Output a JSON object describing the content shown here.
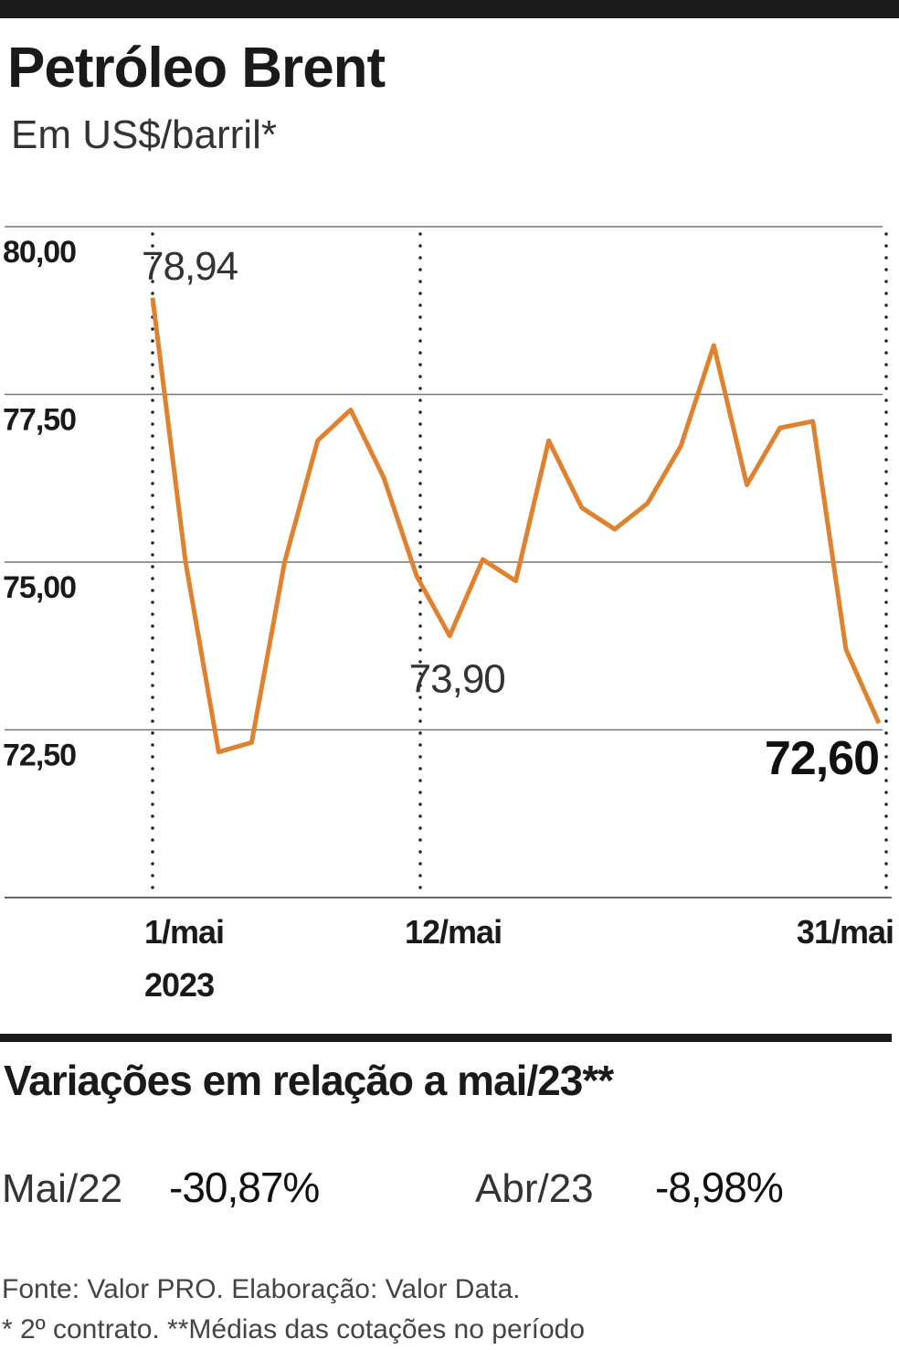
{
  "chart_data": {
    "type": "line",
    "title": "Petróleo Brent",
    "subtitle": "Em US$/barril*",
    "categories": [
      "1/mai",
      null,
      null,
      null,
      null,
      null,
      null,
      null,
      "12/mai",
      null,
      null,
      null,
      null,
      null,
      null,
      null,
      null,
      null,
      null,
      null,
      null,
      null,
      "31/mai"
    ],
    "year_label": "2023",
    "series": [
      {
        "color": "#e0812f",
        "values": [
          78.94,
          75.0,
          72.17,
          72.31,
          75.0,
          76.81,
          77.27,
          76.26,
          74.79,
          73.9,
          75.04,
          74.72,
          76.81,
          75.81,
          75.49,
          75.88,
          76.73,
          78.23,
          76.15,
          77.0,
          77.1,
          73.7,
          72.6
        ],
        "value_labels": [
          "78,94",
          null,
          null,
          null,
          null,
          null,
          null,
          null,
          null,
          "73,90",
          null,
          null,
          null,
          null,
          null,
          null,
          null,
          null,
          null,
          null,
          null,
          null,
          "72,60"
        ]
      }
    ],
    "ylim": [
      70,
      80
    ],
    "yticks": [
      {
        "value": 72.5,
        "label": "72,50"
      },
      {
        "value": 75,
        "label": "75,00"
      },
      {
        "value": 77.5,
        "label": "77,50"
      },
      {
        "value": 80,
        "label": "80,00"
      }
    ],
    "grid": true
  },
  "variations": {
    "title": "Variações em relação a mai/23**",
    "items": [
      {
        "label": "Mai/22",
        "value": "-30,87%"
      },
      {
        "label": "Abr/23",
        "value": "-8,98%"
      }
    ]
  },
  "footnotes": [
    "Fonte: Valor PRO. Elaboração: Valor Data.",
    "* 2º contrato. **Médias das cotações no período"
  ]
}
